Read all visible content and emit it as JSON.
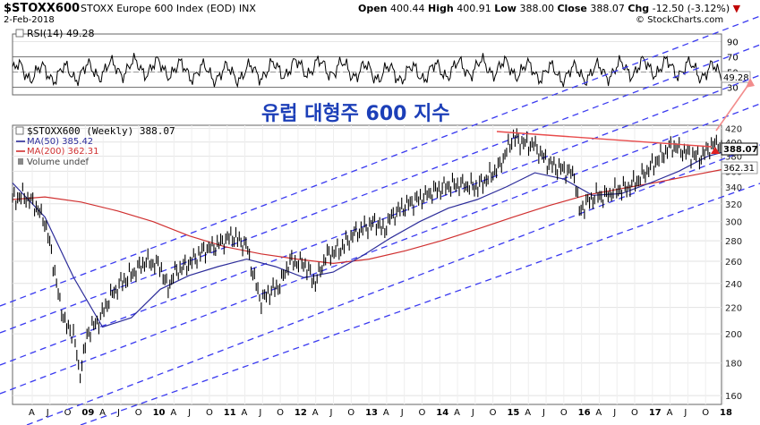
{
  "header": {
    "symbol": "$STOXX600",
    "name": "STOXX Europe 600 Index (EOD)",
    "exchange": "INX",
    "date": "2-Feb-2018",
    "source": "© StockCharts.com",
    "open_label": "Open",
    "open": "400.44",
    "high_label": "High",
    "high": "400.91",
    "low_label": "Low",
    "low": "388.00",
    "close_label": "Close",
    "close": "388.07",
    "chg_label": "Chg",
    "chg": "-12.50 (-3.12%)"
  },
  "rsi_panel": {
    "label": "RSI(14) 49.28",
    "value": 49.28,
    "value_badge": "49.28",
    "ticks": [
      "90",
      "70",
      "50",
      "30"
    ],
    "tick_values": [
      90,
      70,
      50,
      30
    ],
    "overbought": 70,
    "oversold": 30
  },
  "annotation": {
    "title": "유럽 대형주 600 지수",
    "color": "#1c3fb8"
  },
  "legend": {
    "price": "$STOXX600 (Weekly) 388.07",
    "ma50": "MA(50) 385.42",
    "ma200": "MA(200) 362.31",
    "volume": "Volume undef"
  },
  "badges": {
    "close": "388.07",
    "ma200": "362.31"
  },
  "colors": {
    "price": "#000000",
    "ma50": "#2d2d9a",
    "ma200": "#d03030",
    "channel": "#3a3af0",
    "resistance": "#e84b4b",
    "arrow": "#f28c8c"
  },
  "x_labels": [
    "A",
    "J",
    "O",
    "09",
    "A",
    "J",
    "O",
    "10",
    "A",
    "J",
    "O",
    "11",
    "A",
    "J",
    "O",
    "12",
    "A",
    "J",
    "O",
    "13",
    "A",
    "J",
    "O",
    "14",
    "A",
    "J",
    "O",
    "15",
    "A",
    "J",
    "O",
    "16",
    "A",
    "J",
    "O",
    "17",
    "A",
    "J",
    "O",
    "18"
  ],
  "chart_data": {
    "type": "line",
    "title": "$STOXX600 (Weekly) 388.07",
    "xlabel": "",
    "ylabel": "",
    "x_range": [
      2008.25,
      2018.09
    ],
    "ylim": [
      155,
      425
    ],
    "log_scale": true,
    "y_ticks": [
      160,
      180,
      200,
      220,
      240,
      260,
      280,
      300,
      320,
      340,
      360,
      380,
      400,
      420
    ],
    "grid": true,
    "legend_position": "top-left",
    "series": [
      {
        "name": "$STOXX600 (Weekly) 388.07",
        "x": [
          2008.25,
          2008.4,
          2008.55,
          2008.7,
          2008.8,
          2008.9,
          2009.0,
          2009.1,
          2009.18,
          2009.3,
          2009.45,
          2009.6,
          2009.75,
          2009.9,
          2010.1,
          2010.3,
          2010.4,
          2010.5,
          2010.7,
          2010.9,
          2011.1,
          2011.3,
          2011.5,
          2011.6,
          2011.7,
          2011.8,
          2011.95,
          2012.1,
          2012.3,
          2012.45,
          2012.6,
          2012.8,
          2013.0,
          2013.3,
          2013.4,
          2013.5,
          2013.7,
          2013.9,
          2014.1,
          2014.3,
          2014.5,
          2014.7,
          2014.85,
          2015.0,
          2015.2,
          2015.3,
          2015.5,
          2015.6,
          2015.7,
          2015.8,
          2015.95,
          2016.05,
          2016.12,
          2016.2,
          2016.35,
          2016.45,
          2016.6,
          2016.8,
          2016.95,
          2017.1,
          2017.3,
          2017.4,
          2017.6,
          2017.8,
          2017.9,
          2018.05,
          2018.09
        ],
        "values": [
          325,
          330,
          320,
          300,
          265,
          225,
          205,
          200,
          172,
          202,
          210,
          228,
          240,
          248,
          260,
          256,
          235,
          250,
          258,
          270,
          276,
          285,
          275,
          245,
          225,
          232,
          238,
          260,
          258,
          240,
          265,
          272,
          288,
          300,
          290,
          305,
          318,
          326,
          335,
          342,
          343,
          340,
          352,
          365,
          408,
          400,
          395,
          380,
          370,
          365,
          360,
          355,
          310,
          320,
          330,
          328,
          335,
          340,
          350,
          365,
          385,
          395,
          385,
          378,
          390,
          400,
          388
        ]
      },
      {
        "name": "MA(50) 385.42",
        "x": [
          2008.25,
          2008.7,
          2009.1,
          2009.5,
          2009.9,
          2010.3,
          2010.7,
          2011.1,
          2011.5,
          2011.9,
          2012.3,
          2012.7,
          2013.1,
          2013.5,
          2013.9,
          2014.3,
          2014.7,
          2015.1,
          2015.5,
          2015.9,
          2016.3,
          2016.7,
          2017.1,
          2017.5,
          2017.9,
          2018.09
        ],
        "values": [
          345,
          305,
          245,
          205,
          212,
          235,
          247,
          255,
          262,
          255,
          245,
          250,
          265,
          283,
          300,
          315,
          325,
          340,
          358,
          350,
          330,
          332,
          345,
          360,
          380,
          385
        ]
      },
      {
        "name": "MA(200) 362.31",
        "x": [
          2008.25,
          2008.7,
          2009.2,
          2009.7,
          2010.2,
          2010.7,
          2011.2,
          2011.7,
          2012.2,
          2012.7,
          2013.2,
          2013.7,
          2014.2,
          2014.7,
          2015.2,
          2015.7,
          2016.2,
          2016.7,
          2017.2,
          2017.7,
          2018.09
        ],
        "values": [
          325,
          328,
          322,
          312,
          300,
          285,
          274,
          267,
          262,
          258,
          262,
          270,
          280,
          292,
          305,
          318,
          330,
          338,
          346,
          355,
          362
        ]
      }
    ]
  }
}
